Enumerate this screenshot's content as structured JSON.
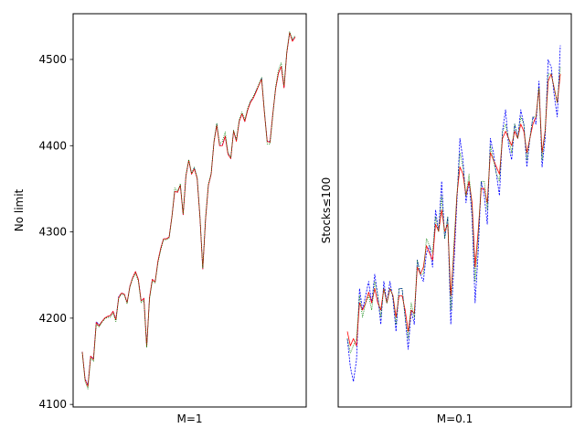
{
  "chart_data": [
    {
      "type": "line",
      "title": "",
      "xlabel": "M=1",
      "ylabel": "No limit",
      "ylim": [
        4097,
        4553
      ],
      "yticks": [
        4100,
        4200,
        4300,
        4400,
        4500
      ],
      "ytick_labels": [
        "4100",
        "4200",
        "4300",
        "4400",
        "4500"
      ],
      "series": [
        {
          "color": "#0000ff",
          "style": "dashed",
          "values": [
            4161,
            4130,
            4122,
            4156,
            4153,
            4196,
            4192,
            4196,
            4200,
            4202,
            4203,
            4208,
            4199,
            4225,
            4229,
            4228,
            4218,
            4237,
            4247,
            4254,
            4245,
            4220,
            4223,
            4167,
            4224,
            4245,
            4242,
            4266,
            4281,
            4292,
            4292,
            4294,
            4318,
            4347,
            4346,
            4354,
            4320,
            4365,
            4383,
            4367,
            4374,
            4362,
            4317,
            4257,
            4315,
            4354,
            4367,
            4404,
            4425,
            4400,
            4401,
            4411,
            4391,
            4385,
            4417,
            4406,
            4428,
            4437,
            4428,
            4441,
            4451,
            4455,
            4463,
            4470,
            4478,
            4439,
            4405,
            4405,
            4437,
            4466,
            4484,
            4492,
            4467,
            4508,
            4531,
            4522,
            4526
          ]
        },
        {
          "color": "#ff0000",
          "style": "solid",
          "values": [
            4161,
            4129,
            4121,
            4156,
            4152,
            4195,
            4191,
            4196,
            4200,
            4202,
            4203,
            4208,
            4198,
            4224,
            4229,
            4228,
            4218,
            4237,
            4247,
            4254,
            4245,
            4220,
            4223,
            4167,
            4224,
            4245,
            4242,
            4266,
            4281,
            4292,
            4292,
            4294,
            4318,
            4347,
            4346,
            4354,
            4320,
            4365,
            4383,
            4367,
            4373,
            4362,
            4317,
            4257,
            4315,
            4354,
            4367,
            4404,
            4424,
            4400,
            4400,
            4411,
            4390,
            4385,
            4417,
            4405,
            4428,
            4437,
            4428,
            4441,
            4450,
            4455,
            4462,
            4470,
            4477,
            4438,
            4405,
            4404,
            4437,
            4466,
            4484,
            4492,
            4467,
            4508,
            4531,
            4521,
            4526
          ]
        },
        {
          "color": "#008000",
          "style": "dotted",
          "values": [
            4160,
            4127,
            4118,
            4154,
            4150,
            4193,
            4190,
            4195,
            4199,
            4201,
            4201,
            4206,
            4196,
            4223,
            4228,
            4227,
            4217,
            4236,
            4246,
            4252,
            4243,
            4218,
            4221,
            4166,
            4222,
            4243,
            4241,
            4264,
            4279,
            4291,
            4291,
            4293,
            4317,
            4351,
            4347,
            4356,
            4321,
            4366,
            4384,
            4368,
            4375,
            4363,
            4318,
            4258,
            4316,
            4355,
            4368,
            4405,
            4426,
            4402,
            4405,
            4416,
            4392,
            4386,
            4418,
            4407,
            4430,
            4439,
            4430,
            4443,
            4452,
            4457,
            4464,
            4471,
            4479,
            4440,
            4402,
            4402,
            4435,
            4468,
            4488,
            4496,
            4470,
            4510,
            4532,
            4523,
            4528
          ]
        }
      ]
    },
    {
      "type": "line",
      "title": "",
      "xlabel": "M=0.1",
      "ylabel": "Stocks≤100",
      "yticks_shown": false,
      "series": [
        {
          "color": "#0000ff",
          "style": "dashed",
          "values": [
            0.86,
            0.94,
            0.98,
            0.92,
            0.72,
            0.78,
            0.74,
            0.7,
            0.76,
            0.68,
            0.74,
            0.82,
            0.7,
            0.76,
            0.7,
            0.75,
            0.84,
            0.72,
            0.72,
            0.8,
            0.89,
            0.78,
            0.82,
            0.64,
            0.68,
            0.7,
            0.62,
            0.6,
            0.66,
            0.5,
            0.56,
            0.42,
            0.58,
            0.52,
            0.82,
            0.66,
            0.48,
            0.3,
            0.36,
            0.48,
            0.42,
            0.52,
            0.76,
            0.62,
            0.42,
            0.46,
            0.54,
            0.3,
            0.34,
            0.4,
            0.46,
            0.28,
            0.22,
            0.32,
            0.36,
            0.26,
            0.3,
            0.22,
            0.26,
            0.38,
            0.3,
            0.24,
            0.26,
            0.14,
            0.38,
            0.3,
            0.08,
            0.1,
            0.18,
            0.24,
            0.04
          ]
        },
        {
          "color": "#ff0000",
          "style": "solid",
          "values": [
            0.84,
            0.88,
            0.86,
            0.88,
            0.76,
            0.78,
            0.76,
            0.73,
            0.76,
            0.72,
            0.76,
            0.78,
            0.72,
            0.76,
            0.72,
            0.74,
            0.8,
            0.74,
            0.74,
            0.78,
            0.84,
            0.78,
            0.79,
            0.66,
            0.68,
            0.66,
            0.6,
            0.62,
            0.64,
            0.54,
            0.56,
            0.5,
            0.56,
            0.54,
            0.74,
            0.62,
            0.46,
            0.38,
            0.4,
            0.46,
            0.42,
            0.48,
            0.66,
            0.56,
            0.44,
            0.44,
            0.48,
            0.34,
            0.36,
            0.38,
            0.4,
            0.3,
            0.28,
            0.3,
            0.32,
            0.28,
            0.3,
            0.26,
            0.28,
            0.34,
            0.3,
            0.26,
            0.24,
            0.16,
            0.34,
            0.28,
            0.14,
            0.12,
            0.16,
            0.2,
            0.12
          ]
        },
        {
          "color": "#008000",
          "style": "dotted",
          "values": [
            0.86,
            0.9,
            0.88,
            0.86,
            0.74,
            0.8,
            0.76,
            0.74,
            0.78,
            0.7,
            0.74,
            0.8,
            0.72,
            0.76,
            0.72,
            0.74,
            0.82,
            0.72,
            0.72,
            0.8,
            0.86,
            0.76,
            0.8,
            0.64,
            0.68,
            0.68,
            0.58,
            0.6,
            0.62,
            0.52,
            0.56,
            0.46,
            0.58,
            0.52,
            0.78,
            0.6,
            0.46,
            0.34,
            0.38,
            0.46,
            0.4,
            0.5,
            0.7,
            0.58,
            0.42,
            0.42,
            0.5,
            0.32,
            0.36,
            0.4,
            0.42,
            0.28,
            0.26,
            0.3,
            0.34,
            0.26,
            0.3,
            0.24,
            0.26,
            0.36,
            0.3,
            0.24,
            0.24,
            0.16,
            0.36,
            0.28,
            0.12,
            0.12,
            0.16,
            0.2,
            0.1
          ]
        }
      ]
    }
  ]
}
